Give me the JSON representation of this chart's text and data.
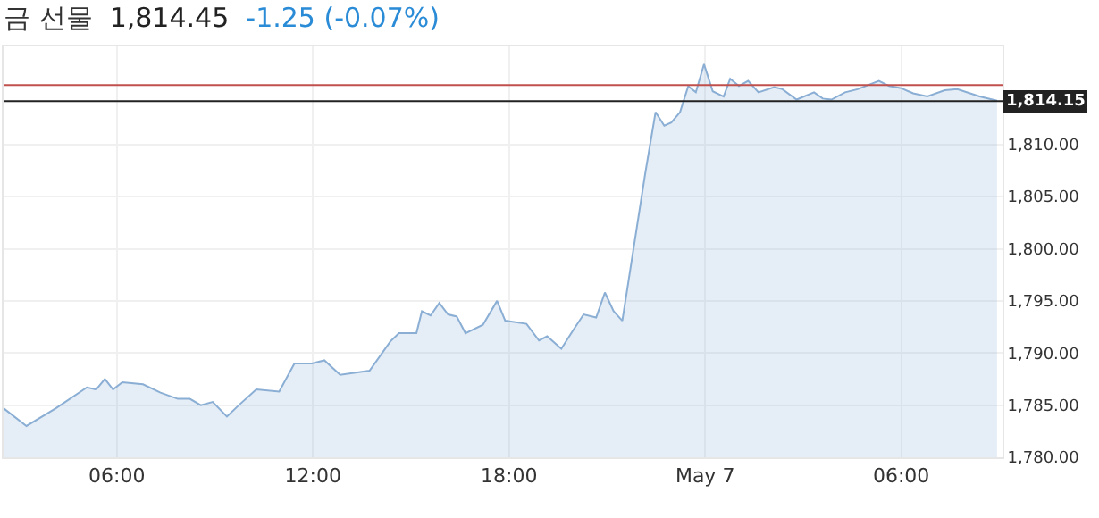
{
  "chart_data": {
    "type": "area",
    "title": "금 선물",
    "subtitle": "1,814.45",
    "annotations": [
      "-1.25 (-0.07%)"
    ],
    "x": [
      "--05-06T02:32",
      "--05-06T03:14",
      "--05-06T04:08",
      "--05-06T05:05",
      "--05-06T05:22",
      "--05-06T05:38",
      "--05-06T05:53",
      "--05-06T06:10",
      "--05-06T06:48",
      "--05-06T07:20",
      "--05-06T07:52",
      "--05-06T08:14",
      "--05-06T08:34",
      "--05-06T08:56",
      "--05-06T09:22",
      "--05-06T09:44",
      "--05-06T10:16",
      "--05-06T10:58",
      "--05-06T11:26",
      "--05-06T11:58",
      "--05-06T12:21",
      "--05-06T12:50",
      "--05-06T13:44",
      "--05-06T14:22",
      "--05-06T14:38",
      "--05-06T15:10",
      "--05-06T15:20",
      "--05-06T15:36",
      "--05-06T15:52",
      "--05-06T16:08",
      "--05-06T16:24",
      "--05-06T16:40",
      "--05-06T17:12",
      "--05-06T17:38",
      "--05-06T17:53",
      "--05-06T18:32",
      "--05-06T18:55",
      "--05-06T19:10",
      "--05-06T19:36",
      "--05-06T19:58",
      "--05-06T20:17",
      "--05-06T20:40",
      "--05-06T20:56",
      "--05-06T21:12",
      "--05-06T21:28",
      "--05-06T22:10",
      "--05-06T22:29",
      "--05-06T22:45",
      "--05-06T22:58",
      "--05-06T23:14",
      "--05-06T23:29",
      "--05-06T23:43",
      "--05-06T23:58",
      "--05-07T00:14",
      "--05-07T00:34",
      "--05-07T00:46",
      "--05-07T01:02",
      "--05-07T01:19",
      "--05-07T01:38",
      "--05-07T02:07",
      "--05-07T02:22",
      "--05-07T02:48",
      "--05-07T03:20",
      "--05-07T03:36",
      "--05-07T03:52",
      "--05-07T04:17",
      "--05-07T04:40",
      "--05-07T05:19",
      "--05-07T05:38",
      "--05-07T06:00",
      "--05-07T06:22",
      "--05-07T06:48",
      "--05-07T07:20",
      "--05-07T07:43",
      "--05-07T08:24",
      "--05-07T08:56"
    ],
    "series": [
      {
        "color": "#8aaed4",
        "values": [
          1784.7,
          1783.0,
          1784.7,
          1786.7,
          1786.5,
          1787.5,
          1786.5,
          1787.2,
          1787.0,
          1786.2,
          1785.6,
          1785.6,
          1785.0,
          1785.3,
          1783.9,
          1785.0,
          1786.5,
          1786.3,
          1789.0,
          1789.0,
          1789.3,
          1787.9,
          1788.3,
          1791.1,
          1791.9,
          1791.9,
          1794.0,
          1793.6,
          1794.8,
          1793.7,
          1793.5,
          1791.9,
          1792.7,
          1795.0,
          1793.1,
          1792.8,
          1791.2,
          1791.6,
          1790.4,
          1792.2,
          1793.7,
          1793.4,
          1795.8,
          1794.0,
          1793.1,
          1807.2,
          1813.1,
          1811.8,
          1812.1,
          1813.1,
          1815.6,
          1815.0,
          1817.7,
          1815.1,
          1814.6,
          1816.3,
          1815.6,
          1816.1,
          1815.0,
          1815.5,
          1815.3,
          1814.3,
          1815.0,
          1814.4,
          1814.3,
          1815.0,
          1815.3,
          1816.1,
          1815.6,
          1815.4,
          1814.9,
          1814.6,
          1815.2,
          1815.3,
          1814.6,
          1814.2
        ]
      }
    ],
    "xlim": [
      "--05-06T02:32",
      "--05-07T09:06"
    ],
    "ylim": [
      1780,
      1819.4
    ],
    "xticks": [
      {
        "value": "--05-06T06:00",
        "label": "06:00"
      },
      {
        "value": "--05-06T12:00",
        "label": "12:00"
      },
      {
        "value": "--05-06T18:00",
        "label": "18:00"
      },
      {
        "value": "--05-07T00:00",
        "label": "May 7"
      },
      {
        "value": "--05-07T06:00",
        "label": "06:00"
      }
    ],
    "yticks": [
      {
        "value": 1780,
        "label": "1,780.00"
      },
      {
        "value": 1785,
        "label": "1,785.00"
      },
      {
        "value": 1790,
        "label": "1,790.00"
      },
      {
        "value": 1795,
        "label": "1,795.00"
      },
      {
        "value": 1800,
        "label": "1,800.00"
      },
      {
        "value": 1805,
        "label": "1,805.00"
      },
      {
        "value": 1810,
        "label": "1,810.00"
      }
    ],
    "ref_lines": [
      {
        "axis": "y",
        "value": 1815.7,
        "color": "#c0504d"
      },
      {
        "axis": "y",
        "value": 1814.15,
        "label": "1,814.15",
        "color": "#222222"
      }
    ],
    "grid": true
  }
}
